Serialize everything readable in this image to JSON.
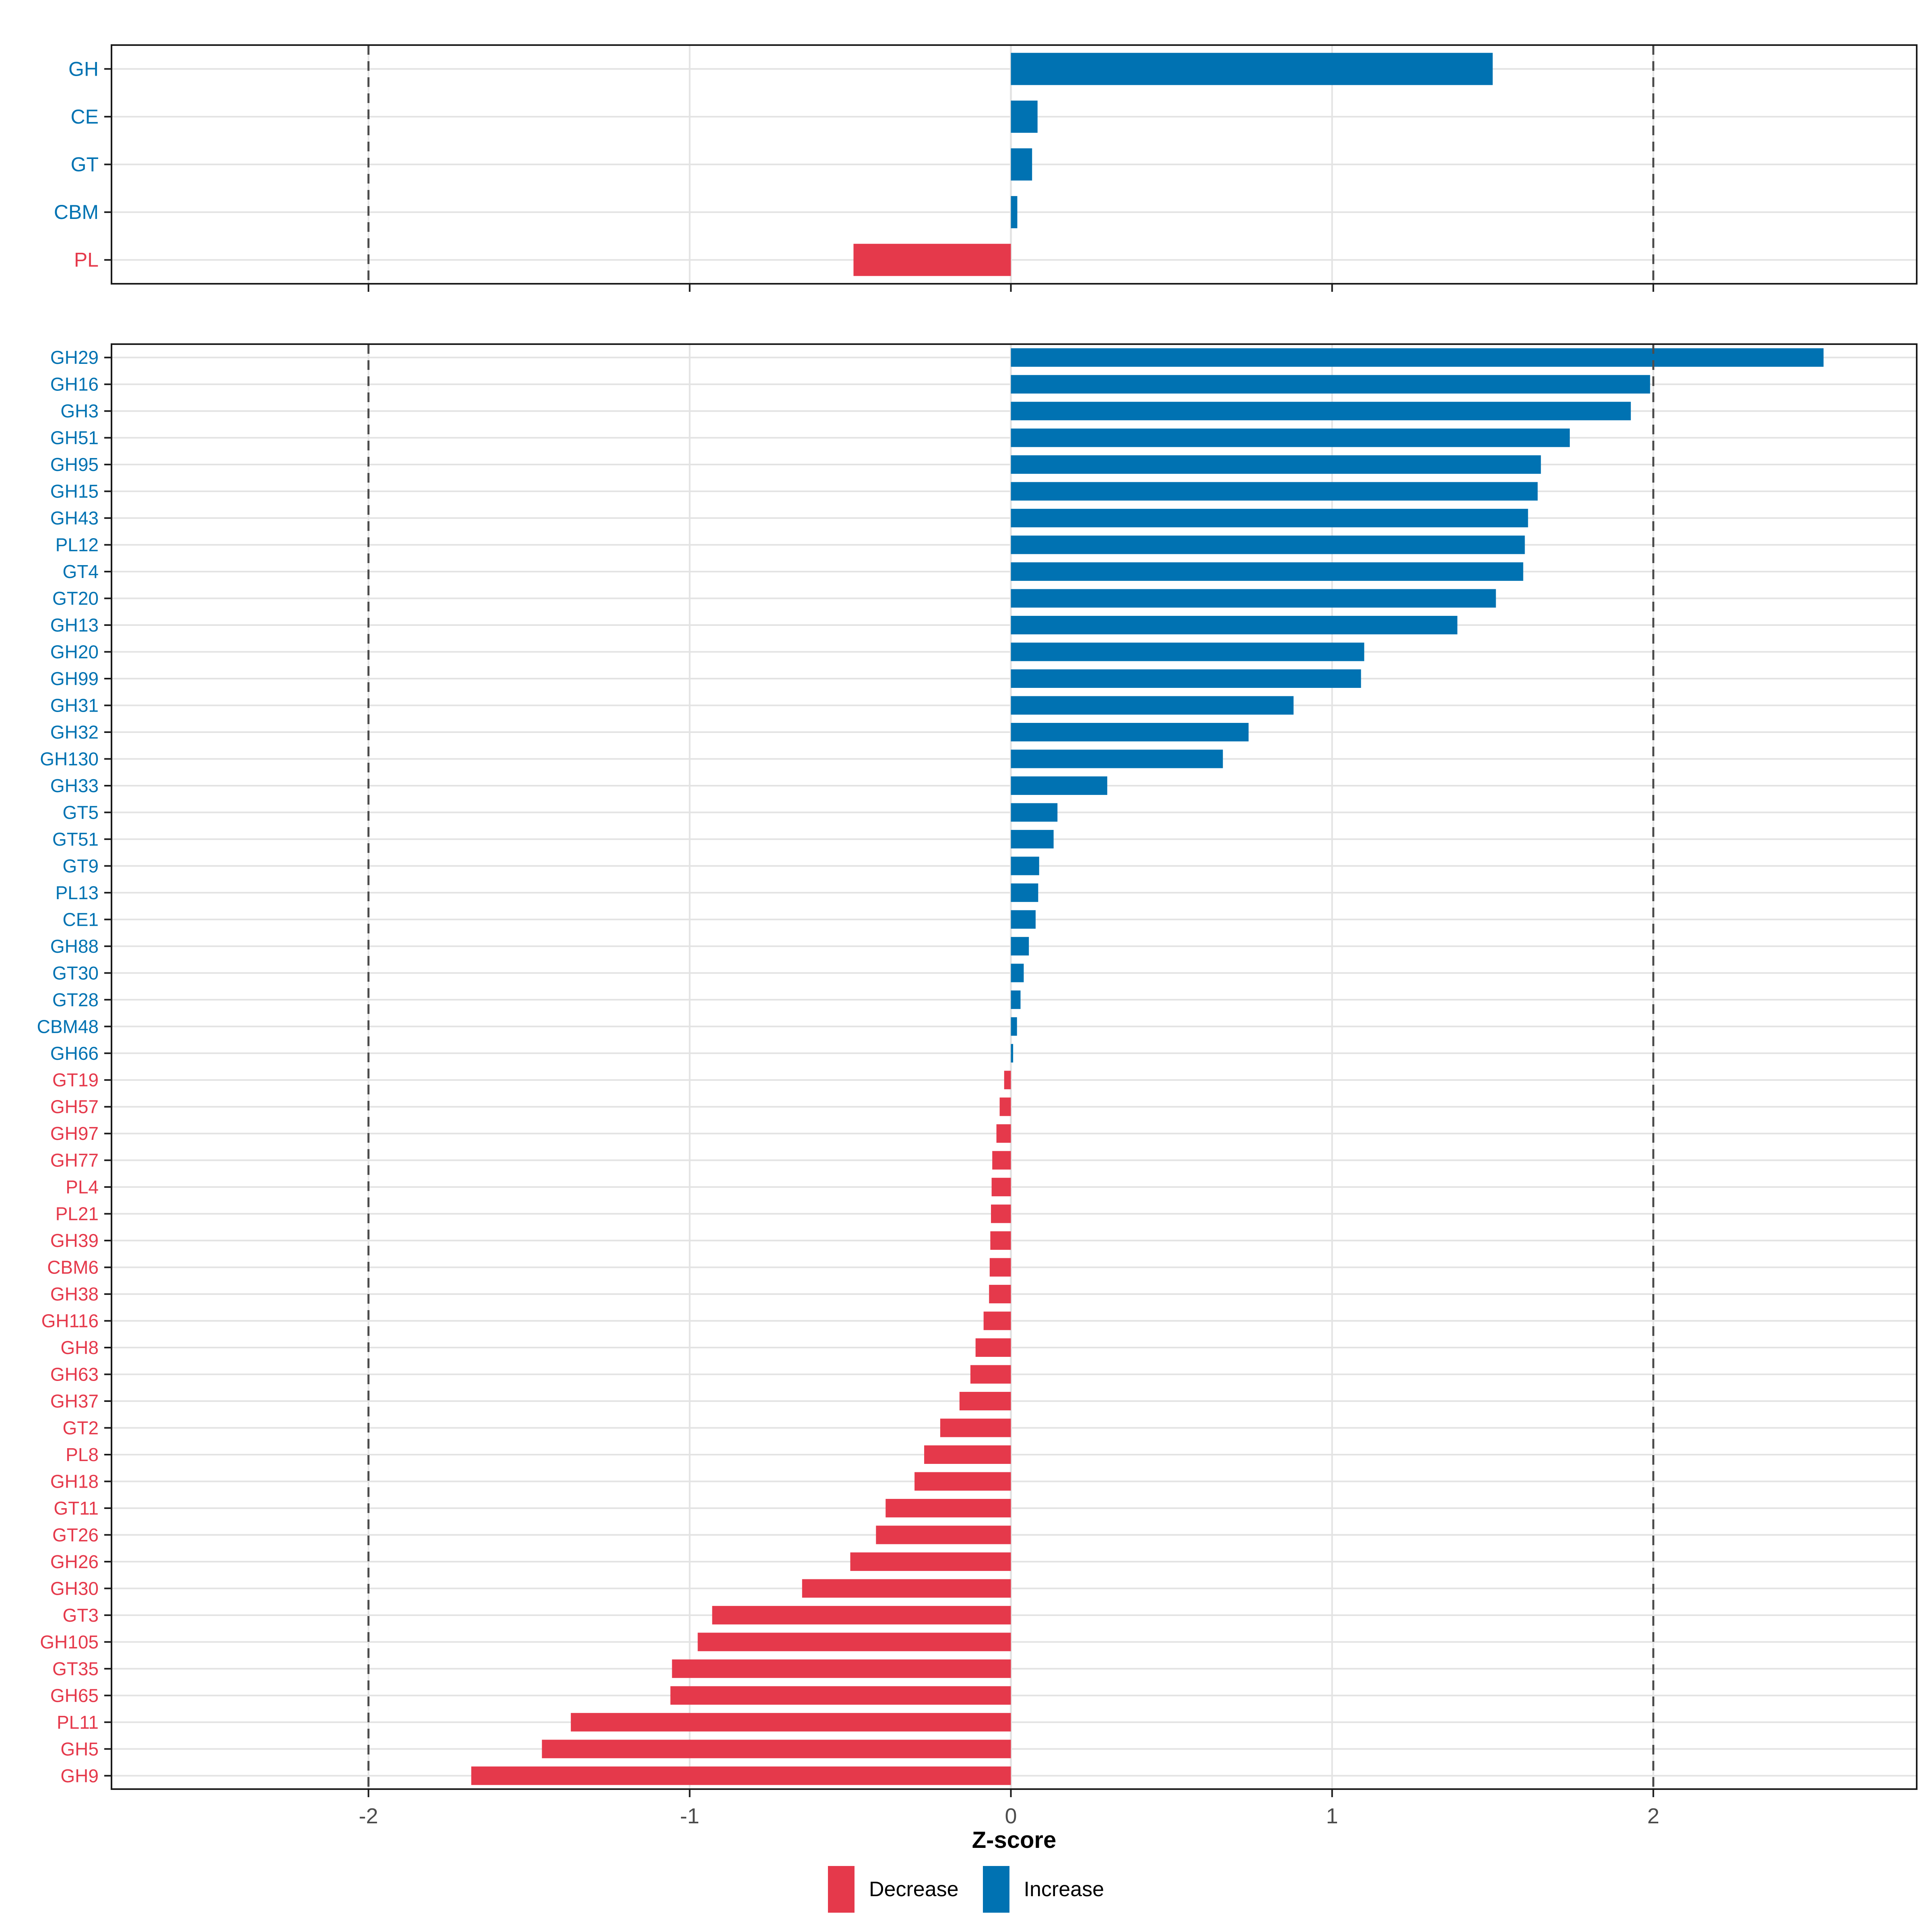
{
  "chart_data": {
    "type": "bar",
    "orientation": "horizontal",
    "title": "",
    "xlabel": "Z-score",
    "ylabel": "",
    "x_tick_labels": [
      "-2",
      "-1",
      "0",
      "1",
      "2"
    ],
    "x_tick_values": [
      -2,
      -1,
      0,
      1,
      2
    ],
    "xlim": [
      -2.8,
      2.82
    ],
    "dashed_reference_lines": [
      -2,
      2
    ],
    "grid": "on",
    "legend_position": "bottom",
    "legend": {
      "items": [
        {
          "label": "Decrease",
          "color": "#E5394B"
        },
        {
          "label": "Increase",
          "color": "#0072B2"
        }
      ]
    },
    "colors": {
      "increase": "#0072B2",
      "decrease": "#E5394B",
      "grid": "#E3E3E3",
      "dashed_line": "#4D4D4D",
      "axis_text": "#4D4D4D",
      "panel_border": "#1A1A1A"
    },
    "panels": [
      {
        "name": "family-summary",
        "categories": [
          "GH",
          "CE",
          "GT",
          "CBM",
          "PL"
        ],
        "values": [
          1.5,
          0.083,
          0.066,
          0.02,
          -0.49
        ]
      },
      {
        "name": "family-detail",
        "categories": [
          "GH29",
          "GH16",
          "GH3",
          "GH51",
          "GH95",
          "GH15",
          "GH43",
          "PL12",
          "GT4",
          "GT20",
          "GH13",
          "GH20",
          "GH99",
          "GH31",
          "GH32",
          "GH130",
          "GH33",
          "GT5",
          "GT51",
          "GT9",
          "PL13",
          "CE1",
          "GH88",
          "GT30",
          "GT28",
          "CBM48",
          "GH66",
          "GT19",
          "GH57",
          "GH97",
          "GH77",
          "PL4",
          "PL21",
          "GH39",
          "CBM6",
          "GH38",
          "GH116",
          "GH8",
          "GH63",
          "GH37",
          "GT2",
          "PL8",
          "GH18",
          "GT11",
          "GT26",
          "GH26",
          "GH30",
          "GT3",
          "GH105",
          "GT35",
          "GH65",
          "PL11",
          "GH5",
          "GH9"
        ],
        "values": [
          2.53,
          1.99,
          1.93,
          1.74,
          1.65,
          1.64,
          1.61,
          1.6,
          1.595,
          1.51,
          1.39,
          1.1,
          1.09,
          0.88,
          0.74,
          0.66,
          0.3,
          0.145,
          0.133,
          0.088,
          0.085,
          0.077,
          0.056,
          0.04,
          0.03,
          0.019,
          0.007,
          -0.021,
          -0.035,
          -0.045,
          -0.058,
          -0.06,
          -0.062,
          -0.064,
          -0.066,
          -0.068,
          -0.085,
          -0.11,
          -0.126,
          -0.16,
          -0.22,
          -0.27,
          -0.3,
          -0.39,
          -0.42,
          -0.5,
          -0.65,
          -0.93,
          -0.975,
          -1.055,
          -1.06,
          -1.37,
          -1.46,
          -1.68
        ]
      }
    ]
  }
}
